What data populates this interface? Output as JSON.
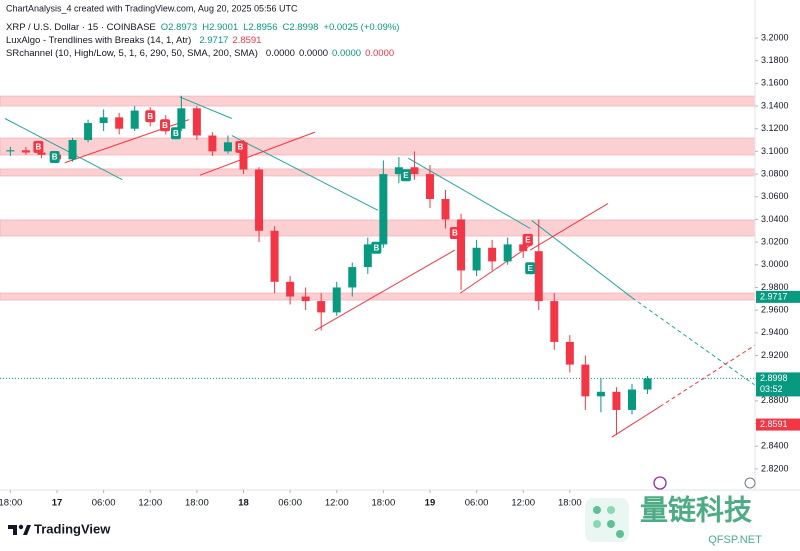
{
  "header": {
    "caption": "ChartAnalysis_4 created with TradingView.com, Aug 20, 2025 05:56 UTC",
    "symbol": "XRP / U.S. Dollar · 15 · COINBASE",
    "ohlc": [
      "O2.8973",
      "H2.9001",
      "L2.8956",
      "C2.8998"
    ],
    "change": "+0.0025 (+0.09%)",
    "indicators": [
      {
        "name": "LuxAlgo - Trendlines with Breaks (14, 1, Atr)",
        "values": [
          {
            "text": "2.9717",
            "color": "#089981"
          },
          {
            "text": "2.8591",
            "color": "#f23645"
          }
        ]
      },
      {
        "name": "SRchannel (10, High/Low, 5, 1, 6, 290, 50, SMA, 200, SMA)",
        "values": [
          {
            "text": "0.0000",
            "color": "#131722"
          },
          {
            "text": "0.0000",
            "color": "#131722"
          },
          {
            "text": "0.0000",
            "color": "#089981"
          },
          {
            "text": "0.0000",
            "color": "#f23645"
          }
        ]
      }
    ]
  },
  "chart_data": {
    "type": "candlestick",
    "up_color": "#089981",
    "down_color": "#f23645",
    "x": [
      -6,
      -4,
      -2,
      0,
      2,
      4,
      6,
      8,
      10,
      12,
      14,
      16,
      18,
      20,
      22,
      24,
      26,
      28,
      30,
      32,
      34,
      36,
      38,
      40,
      42,
      44,
      46,
      48,
      50,
      52,
      54,
      56,
      58,
      60,
      62,
      64,
      66,
      68,
      70,
      72,
      74,
      76
    ],
    "open": [
      3.1,
      3.101,
      3.099,
      3.097,
      3.093,
      3.11,
      3.125,
      3.13,
      3.12,
      3.136,
      3.126,
      3.12,
      3.138,
      3.114,
      3.1,
      3.108,
      3.084,
      3.03,
      2.985,
      2.972,
      2.968,
      2.958,
      2.98,
      2.998,
      3.018,
      3.08,
      3.086,
      3.08,
      3.058,
      3.04,
      2.995,
      3.015,
      3.003,
      3.018,
      3.012,
      2.968,
      2.932,
      2.912,
      2.884,
      2.888,
      2.872,
      2.89
    ],
    "high": [
      3.104,
      3.104,
      3.103,
      3.1,
      3.112,
      3.128,
      3.137,
      3.134,
      3.14,
      3.139,
      3.132,
      3.149,
      3.14,
      3.117,
      3.114,
      3.11,
      3.086,
      3.034,
      2.99,
      2.98,
      2.975,
      2.985,
      3.002,
      3.024,
      3.092,
      3.095,
      3.1,
      3.088,
      3.066,
      3.045,
      3.022,
      3.022,
      3.024,
      3.026,
      3.04,
      2.975,
      2.938,
      2.92,
      2.9,
      2.892,
      2.895,
      2.902
    ],
    "low": [
      3.096,
      3.097,
      3.094,
      3.09,
      3.091,
      3.108,
      3.118,
      3.115,
      3.118,
      3.122,
      3.115,
      3.118,
      3.11,
      3.096,
      3.098,
      3.08,
      3.02,
      2.975,
      2.965,
      2.96,
      2.942,
      2.955,
      2.972,
      2.992,
      3.015,
      3.072,
      3.075,
      3.05,
      3.032,
      2.978,
      2.99,
      2.995,
      3.0,
      3.006,
      2.96,
      2.925,
      2.905,
      2.872,
      2.87,
      2.85,
      2.868,
      2.886
    ],
    "close": [
      3.101,
      3.099,
      3.097,
      3.093,
      3.11,
      3.125,
      3.13,
      3.12,
      3.136,
      3.126,
      3.12,
      3.138,
      3.114,
      3.1,
      3.108,
      3.084,
      3.03,
      2.985,
      2.972,
      2.968,
      2.958,
      2.98,
      2.998,
      3.018,
      3.08,
      3.086,
      3.08,
      3.058,
      3.04,
      2.995,
      3.015,
      3.003,
      3.018,
      3.012,
      2.968,
      2.932,
      2.912,
      2.884,
      2.888,
      2.872,
      2.89,
      2.8998
    ],
    "xlim": [
      -7.336,
      89.83
    ],
    "ylim": [
      2.8014,
      3.2335
    ],
    "xticks": [
      {
        "value": -6,
        "label": "18:00"
      },
      {
        "value": 0,
        "label": "17"
      },
      {
        "value": 6,
        "label": "06:00"
      },
      {
        "value": 12,
        "label": "12:00"
      },
      {
        "value": 18,
        "label": "18:00"
      },
      {
        "value": 24,
        "label": "18"
      },
      {
        "value": 30,
        "label": "06:00"
      },
      {
        "value": 36,
        "label": "12:00"
      },
      {
        "value": 42,
        "label": "18:00"
      },
      {
        "value": 48,
        "label": "19"
      },
      {
        "value": 54,
        "label": "06:00"
      },
      {
        "value": 60,
        "label": "12:00"
      },
      {
        "value": 66,
        "label": "18:00"
      }
    ],
    "yticks": [
      {
        "value": 3.2,
        "label": "3.2000"
      },
      {
        "value": 3.18,
        "label": "3.1800"
      },
      {
        "value": 3.16,
        "label": "3.1600"
      },
      {
        "value": 3.14,
        "label": "3.1400"
      },
      {
        "value": 3.12,
        "label": "3.1200"
      },
      {
        "value": 3.1,
        "label": "3.1000"
      },
      {
        "value": 3.08,
        "label": "3.0800"
      },
      {
        "value": 3.06,
        "label": "3.0600"
      },
      {
        "value": 3.04,
        "label": "3.0400"
      },
      {
        "value": 3.02,
        "label": "3.0200"
      },
      {
        "value": 3.0,
        "label": "3.0000"
      },
      {
        "value": 2.98,
        "label": "2.9800"
      },
      {
        "value": 2.96,
        "label": "2.9600"
      },
      {
        "value": 2.94,
        "label": "2.9400"
      },
      {
        "value": 2.92,
        "label": "2.9200"
      },
      {
        "value": 2.9,
        "label": "2.9000"
      },
      {
        "value": 2.88,
        "label": "2.8800"
      },
      {
        "value": 2.86,
        "label": "2.8600"
      },
      {
        "value": 2.84,
        "label": "2.8400"
      },
      {
        "value": 2.82,
        "label": "2.8200"
      }
    ],
    "zone_color": "#fbd0d3",
    "zones": [
      [
        3.14,
        3.1488
      ],
      [
        3.0968,
        3.1118
      ],
      [
        3.0783,
        3.0845
      ],
      [
        3.0254,
        3.0395
      ],
      [
        2.9689,
        2.9751
      ]
    ],
    "trendlines": [
      {
        "color": "#26a69a",
        "dashed": false,
        "x": [
          -6.7,
          8.4
        ],
        "y": [
          3.129,
          3.075
        ]
      },
      {
        "color": "#26a69a",
        "dashed": false,
        "x": [
          15.8,
          22.5
        ],
        "y": [
          3.148,
          3.129
        ]
      },
      {
        "color": "#26a69a",
        "dashed": false,
        "x": [
          22.5,
          41.3
        ],
        "y": [
          3.114,
          3.048
        ]
      },
      {
        "color": "#26a69a",
        "dashed": false,
        "x": [
          45.2,
          60.9
        ],
        "y": [
          3.094,
          3.032
        ]
      },
      {
        "color": "#26a69a",
        "dashed": false,
        "x": [
          61.1,
          74.0
        ],
        "y": [
          3.039,
          2.971
        ]
      },
      {
        "color": "#26a69a",
        "dashed": true,
        "x": [
          74.0,
          89.8
        ],
        "y": [
          2.971,
          2.894
        ]
      },
      {
        "color": "#f23645",
        "dashed": false,
        "x": [
          1,
          17
        ],
        "y": [
          3.09,
          3.128
        ]
      },
      {
        "color": "#f23645",
        "dashed": false,
        "x": [
          18.4,
          33.2
        ],
        "y": [
          3.079,
          3.117
        ]
      },
      {
        "color": "#f23645",
        "dashed": false,
        "x": [
          33.2,
          51.2
        ],
        "y": [
          2.942,
          3.013
        ]
      },
      {
        "color": "#f23645",
        "dashed": false,
        "x": [
          51.9,
          60.9
        ],
        "y": [
          2.975,
          3.017
        ]
      },
      {
        "color": "#f23645",
        "dashed": false,
        "x": [
          60.9,
          70.9
        ],
        "y": [
          3.013,
          3.054
        ]
      },
      {
        "color": "#f23645",
        "dashed": false,
        "x": [
          71.4,
          77.6
        ],
        "y": [
          2.848,
          2.875
        ]
      },
      {
        "color": "#f23645",
        "dashed": true,
        "x": [
          77.6,
          89.8
        ],
        "y": [
          2.875,
          2.929
        ]
      }
    ],
    "signals": [
      {
        "text": "B",
        "x": -2.4,
        "y": 3.104,
        "color": "#f23645"
      },
      {
        "text": "B",
        "x": -0.3,
        "y": 3.095,
        "color": "#089981"
      },
      {
        "text": "B",
        "x": 12.0,
        "y": 3.131,
        "color": "#f23645"
      },
      {
        "text": "B",
        "x": 13.9,
        "y": 3.123,
        "color": "#f23645"
      },
      {
        "text": "B",
        "x": 15.3,
        "y": 3.116,
        "color": "#089981"
      },
      {
        "text": "B",
        "x": 23.6,
        "y": 3.104,
        "color": "#f23645"
      },
      {
        "text": "B",
        "x": 41.1,
        "y": 3.015,
        "color": "#089981"
      },
      {
        "text": "E",
        "x": 44.9,
        "y": 3.079,
        "color": "#089981"
      },
      {
        "text": "B",
        "x": 51.2,
        "y": 3.028,
        "color": "#f23645"
      },
      {
        "text": "E",
        "x": 60.6,
        "y": 3.022,
        "color": "#f23645"
      },
      {
        "text": "E",
        "x": 60.9,
        "y": 2.997,
        "color": "#089981"
      }
    ],
    "price_labels": [
      {
        "value": 2.9717,
        "color": "#089981"
      },
      {
        "value": 2.8998,
        "color": "#089981",
        "sub": "03:52",
        "line": true
      },
      {
        "value": 2.8591,
        "color": "#f23645"
      }
    ]
  },
  "footer": {
    "brand": "TradingView",
    "watermark": "量链科技",
    "watermark_url": "QFSP.NET"
  }
}
